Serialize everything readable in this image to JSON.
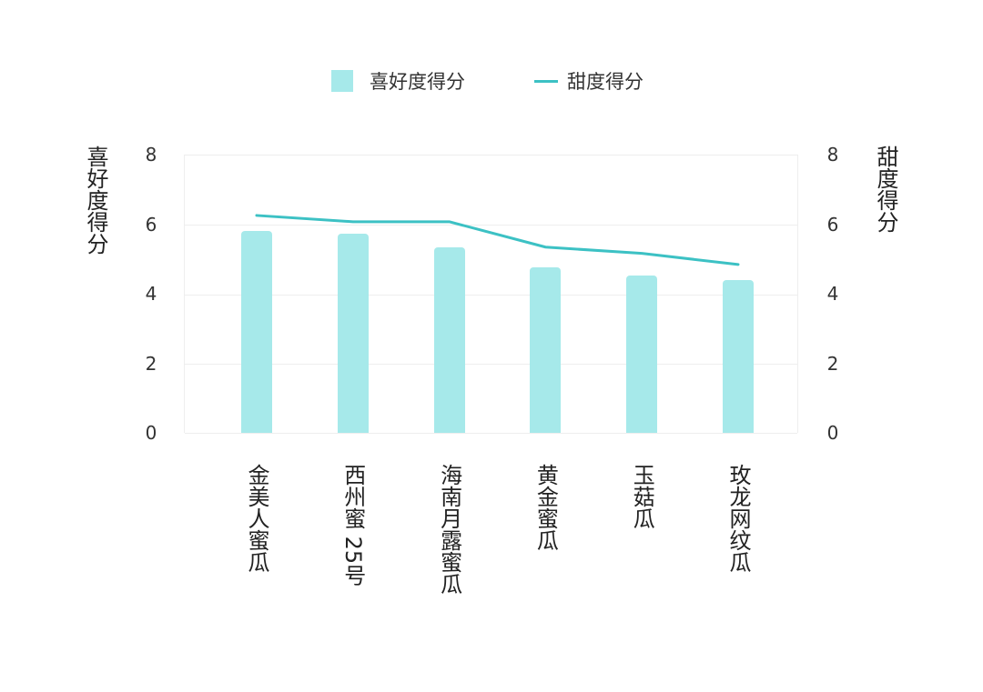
{
  "legend": {
    "bar_label": "喜好度得分",
    "line_label": "甜度得分"
  },
  "axes": {
    "left_title": "喜好度得分",
    "right_title": "甜度得分",
    "left_ticks": [
      "0",
      "2",
      "4",
      "6",
      "8"
    ],
    "right_ticks": [
      "0",
      "2",
      "4",
      "6",
      "8"
    ]
  },
  "colors": {
    "bar": "#a6e9ea",
    "line": "#3cc1c4",
    "grid": "#eeeeee"
  },
  "categories": [
    "金美人蜜瓜",
    "西州蜜 25号",
    "海南月露蜜瓜",
    "黄金蜜瓜",
    "玉菇瓜",
    "玫龙网纹瓜"
  ],
  "chart_data": {
    "type": "bar",
    "title": "",
    "categories": [
      "金美人蜜瓜",
      "西州蜜 25号",
      "海南月露蜜瓜",
      "黄金蜜瓜",
      "玉菇瓜",
      "玫龙网纹瓜"
    ],
    "series": [
      {
        "name": "喜好度得分",
        "type": "bar",
        "axis": "left",
        "values": [
          5.8,
          5.73,
          5.34,
          4.76,
          4.53,
          4.4
        ]
      },
      {
        "name": "甜度得分",
        "type": "line",
        "axis": "right",
        "values": [
          6.25,
          6.07,
          6.07,
          5.34,
          5.16,
          4.84
        ]
      }
    ],
    "xlabel": "",
    "ylabel": "喜好度得分",
    "ylabel_right": "甜度得分",
    "ylim": [
      0,
      8
    ],
    "ylim_right": [
      0,
      8
    ],
    "yticks": [
      0,
      2,
      4,
      6,
      8
    ],
    "grid": true,
    "legend_position": "top"
  }
}
